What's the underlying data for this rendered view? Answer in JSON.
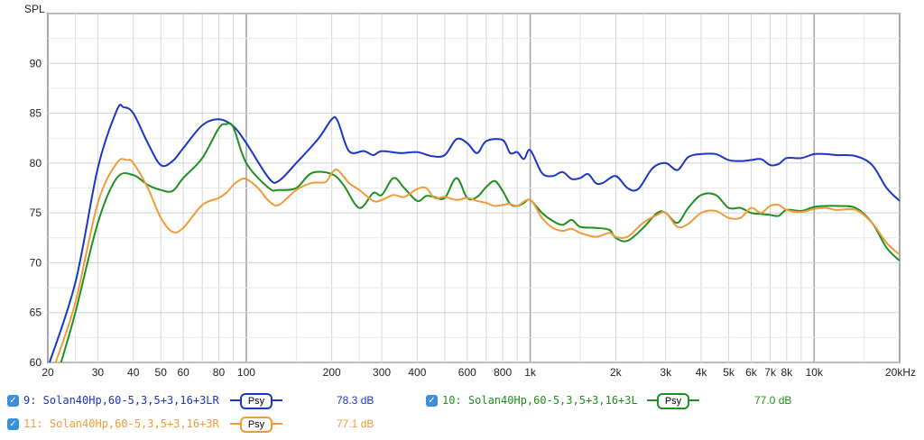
{
  "chart_data": {
    "type": "line",
    "ylabel": "SPL",
    "x_scale": "log",
    "xlim": [
      20,
      20000
    ],
    "ylim": [
      60,
      95
    ],
    "grid": true,
    "x_ticks": [
      {
        "v": 20,
        "label": "20"
      },
      {
        "v": 30,
        "label": "30"
      },
      {
        "v": 40,
        "label": "40"
      },
      {
        "v": 50,
        "label": "50"
      },
      {
        "v": 60,
        "label": "60"
      },
      {
        "v": 80,
        "label": "80"
      },
      {
        "v": 100,
        "label": "100"
      },
      {
        "v": 200,
        "label": "200"
      },
      {
        "v": 300,
        "label": "300"
      },
      {
        "v": 400,
        "label": "400"
      },
      {
        "v": 600,
        "label": "600"
      },
      {
        "v": 800,
        "label": "800"
      },
      {
        "v": 1000,
        "label": "1k"
      },
      {
        "v": 2000,
        "label": "2k"
      },
      {
        "v": 3000,
        "label": "3k"
      },
      {
        "v": 4000,
        "label": "4k"
      },
      {
        "v": 5000,
        "label": "5k"
      },
      {
        "v": 6000,
        "label": "6k"
      },
      {
        "v": 7000,
        "label": "7k"
      },
      {
        "v": 8000,
        "label": "8k"
      },
      {
        "v": 10000,
        "label": "10k"
      },
      {
        "v": 20000,
        "label": "20kHz"
      }
    ],
    "y_ticks": [
      60,
      65,
      70,
      75,
      80,
      85,
      90
    ],
    "series": [
      {
        "name": "9: Solan40Hp,60-5,3,5+3,16+3LR",
        "color": "#1a35c8",
        "points": [
          [
            20,
            59.5
          ],
          [
            25,
            68
          ],
          [
            30,
            79.5
          ],
          [
            35,
            85.3
          ],
          [
            37,
            85.6
          ],
          [
            40,
            85
          ],
          [
            45,
            82
          ],
          [
            50,
            79.8
          ],
          [
            55,
            80.2
          ],
          [
            60,
            81.5
          ],
          [
            70,
            83.8
          ],
          [
            80,
            84.4
          ],
          [
            90,
            83.7
          ],
          [
            100,
            82
          ],
          [
            120,
            78.5
          ],
          [
            130,
            78.2
          ],
          [
            150,
            80
          ],
          [
            180,
            82.5
          ],
          [
            200,
            84.4
          ],
          [
            210,
            84.2
          ],
          [
            230,
            81.2
          ],
          [
            260,
            81.2
          ],
          [
            280,
            80.8
          ],
          [
            300,
            81.2
          ],
          [
            350,
            81
          ],
          [
            400,
            81.1
          ],
          [
            450,
            80.7
          ],
          [
            500,
            80.8
          ],
          [
            550,
            82.4
          ],
          [
            600,
            82
          ],
          [
            650,
            81
          ],
          [
            700,
            82.2
          ],
          [
            800,
            82.3
          ],
          [
            850,
            81
          ],
          [
            900,
            81.1
          ],
          [
            950,
            80.4
          ],
          [
            1000,
            81.3
          ],
          [
            1100,
            79
          ],
          [
            1200,
            78.7
          ],
          [
            1300,
            79.1
          ],
          [
            1400,
            78.4
          ],
          [
            1500,
            78.5
          ],
          [
            1600,
            78.9
          ],
          [
            1700,
            78
          ],
          [
            1800,
            78
          ],
          [
            2000,
            78.7
          ],
          [
            2200,
            77.5
          ],
          [
            2400,
            77.4
          ],
          [
            2700,
            79.5
          ],
          [
            3000,
            80
          ],
          [
            3300,
            79.3
          ],
          [
            3600,
            80.6
          ],
          [
            4000,
            80.9
          ],
          [
            4500,
            80.9
          ],
          [
            5000,
            80.3
          ],
          [
            5500,
            80.2
          ],
          [
            6000,
            80.3
          ],
          [
            6500,
            80.4
          ],
          [
            7000,
            79.8
          ],
          [
            7500,
            79.9
          ],
          [
            8000,
            80.5
          ],
          [
            9000,
            80.5
          ],
          [
            10000,
            80.9
          ],
          [
            11000,
            80.9
          ],
          [
            12000,
            80.8
          ],
          [
            14000,
            80.7
          ],
          [
            16000,
            79.8
          ],
          [
            18000,
            77.5
          ],
          [
            20000,
            76.2
          ]
        ]
      },
      {
        "name": "10: Solan40Hp,60-5,3,5+3,16+3L",
        "color": "#1f8f1f",
        "points": [
          [
            22,
            59.5
          ],
          [
            25,
            65
          ],
          [
            30,
            74
          ],
          [
            35,
            78.5
          ],
          [
            40,
            78.8
          ],
          [
            45,
            77.8
          ],
          [
            50,
            77.3
          ],
          [
            55,
            77.2
          ],
          [
            60,
            78.5
          ],
          [
            70,
            80.5
          ],
          [
            80,
            83.5
          ],
          [
            85,
            83.9
          ],
          [
            90,
            83.6
          ],
          [
            100,
            80
          ],
          [
            120,
            77.5
          ],
          [
            130,
            77.3
          ],
          [
            150,
            77.5
          ],
          [
            170,
            79
          ],
          [
            200,
            78.9
          ],
          [
            220,
            77.8
          ],
          [
            250,
            75.5
          ],
          [
            280,
            77
          ],
          [
            300,
            76.8
          ],
          [
            330,
            78.5
          ],
          [
            360,
            77.5
          ],
          [
            400,
            76.2
          ],
          [
            430,
            76.7
          ],
          [
            460,
            76.6
          ],
          [
            500,
            76.5
          ],
          [
            550,
            78.5
          ],
          [
            600,
            76.5
          ],
          [
            650,
            76.6
          ],
          [
            700,
            77.6
          ],
          [
            750,
            78.2
          ],
          [
            800,
            77.2
          ],
          [
            850,
            75.9
          ],
          [
            900,
            75.7
          ],
          [
            950,
            76
          ],
          [
            1000,
            76.3
          ],
          [
            1100,
            75
          ],
          [
            1200,
            74.2
          ],
          [
            1300,
            73.8
          ],
          [
            1400,
            74.3
          ],
          [
            1500,
            73.6
          ],
          [
            1700,
            73.5
          ],
          [
            1900,
            73.3
          ],
          [
            2000,
            72.5
          ],
          [
            2200,
            72.2
          ],
          [
            2500,
            73.5
          ],
          [
            2800,
            75
          ],
          [
            3000,
            75
          ],
          [
            3300,
            74
          ],
          [
            3600,
            75.5
          ],
          [
            4000,
            76.8
          ],
          [
            4500,
            76.8
          ],
          [
            5000,
            75.5
          ],
          [
            5500,
            75.5
          ],
          [
            6000,
            75
          ],
          [
            6500,
            74.9
          ],
          [
            7000,
            74.8
          ],
          [
            7500,
            74.7
          ],
          [
            8000,
            75.3
          ],
          [
            9000,
            75.2
          ],
          [
            10000,
            75.6
          ],
          [
            11000,
            75.7
          ],
          [
            12000,
            75.7
          ],
          [
            14000,
            75.5
          ],
          [
            16000,
            74
          ],
          [
            18000,
            71.5
          ],
          [
            20000,
            70.2
          ]
        ]
      },
      {
        "name": "11: Solan40Hp,60-5,3,5+3,16+3R",
        "color": "#f09a3a",
        "points": [
          [
            21,
            59.5
          ],
          [
            25,
            66
          ],
          [
            30,
            76
          ],
          [
            35,
            80
          ],
          [
            38,
            80.3
          ],
          [
            40,
            80
          ],
          [
            45,
            77.5
          ],
          [
            50,
            74.5
          ],
          [
            55,
            73.1
          ],
          [
            60,
            73.5
          ],
          [
            70,
            75.8
          ],
          [
            80,
            76.5
          ],
          [
            85,
            77
          ],
          [
            90,
            77.8
          ],
          [
            95,
            78.3
          ],
          [
            100,
            78.4
          ],
          [
            110,
            77.5
          ],
          [
            120,
            76.2
          ],
          [
            130,
            75.8
          ],
          [
            150,
            77.3
          ],
          [
            170,
            78
          ],
          [
            190,
            78.1
          ],
          [
            200,
            79
          ],
          [
            210,
            79.3
          ],
          [
            230,
            78
          ],
          [
            250,
            77.3
          ],
          [
            280,
            76.2
          ],
          [
            300,
            76.3
          ],
          [
            330,
            76.8
          ],
          [
            360,
            76.6
          ],
          [
            400,
            77.4
          ],
          [
            430,
            77.5
          ],
          [
            460,
            76.5
          ],
          [
            500,
            76.6
          ],
          [
            550,
            76.3
          ],
          [
            600,
            76.5
          ],
          [
            650,
            76.2
          ],
          [
            700,
            76
          ],
          [
            750,
            75.7
          ],
          [
            800,
            75.8
          ],
          [
            850,
            75.9
          ],
          [
            900,
            75.7
          ],
          [
            1000,
            76.3
          ],
          [
            1100,
            74.5
          ],
          [
            1200,
            73.5
          ],
          [
            1300,
            73.2
          ],
          [
            1400,
            73.4
          ],
          [
            1500,
            73
          ],
          [
            1700,
            72.6
          ],
          [
            1900,
            73
          ],
          [
            2000,
            72.6
          ],
          [
            2200,
            72.6
          ],
          [
            2500,
            74
          ],
          [
            2800,
            74.8
          ],
          [
            3000,
            75
          ],
          [
            3300,
            73.6
          ],
          [
            3600,
            73.9
          ],
          [
            4000,
            75
          ],
          [
            4500,
            75.2
          ],
          [
            5000,
            74.5
          ],
          [
            5500,
            74.5
          ],
          [
            6000,
            75.5
          ],
          [
            6500,
            75
          ],
          [
            7000,
            75.7
          ],
          [
            7500,
            75.8
          ],
          [
            8000,
            75.3
          ],
          [
            9000,
            75.1
          ],
          [
            10000,
            75.4
          ],
          [
            11000,
            75.5
          ],
          [
            12000,
            75.3
          ],
          [
            14000,
            75.3
          ],
          [
            16000,
            74
          ],
          [
            18000,
            72
          ],
          [
            20000,
            70.8
          ]
        ]
      }
    ]
  },
  "legend": [
    {
      "checked": true,
      "label": "9: Solan40Hp,60-5,3,5+3,16+3LR",
      "psy": "Psy",
      "value": "78.3 dB",
      "color": "#1a35c8"
    },
    {
      "checked": true,
      "label": "10: Solan40Hp,60-5,3,5+3,16+3L",
      "psy": "Psy",
      "value": "77.0 dB",
      "color": "#1f8f1f"
    },
    {
      "checked": true,
      "label": "11: Solan40Hp,60-5,3,5+3,16+3R",
      "psy": "Psy",
      "value": "77.1 dB",
      "color": "#f09a3a"
    }
  ],
  "icons": {
    "checkbox": "checkmark-icon"
  }
}
